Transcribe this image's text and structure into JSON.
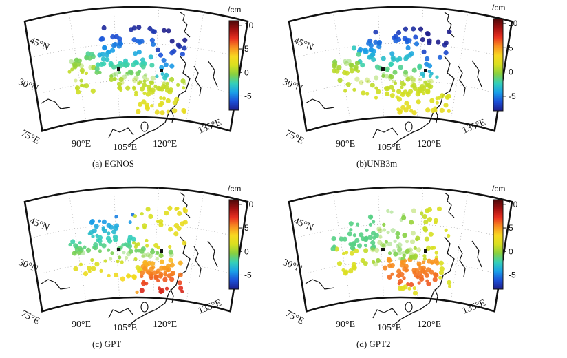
{
  "colorbar": {
    "unit": "/cm",
    "ticks": [
      10,
      5,
      0,
      -5
    ],
    "range": [
      -8,
      11
    ],
    "colors": [
      "#1e1e8c",
      "#1c50d8",
      "#1aa0e8",
      "#34d0b8",
      "#88d040",
      "#d8e020",
      "#f8d820",
      "#f89020",
      "#e83020",
      "#a01010",
      "#4a0808"
    ]
  },
  "panels": [
    {
      "caption": "(a) EGNOS",
      "lat_labels": [
        "45°N",
        "30°N"
      ],
      "lon_labels": [
        "75°E",
        "90°E",
        "105°E",
        "120°E",
        "135°E"
      ]
    },
    {
      "caption": "(b)UNB3m",
      "lat_labels": [
        "45°N",
        "30°N"
      ],
      "lon_labels": [
        "75°E",
        "90°E",
        "105°E",
        "120°E",
        "135°E"
      ]
    },
    {
      "caption": "(c) GPT",
      "lat_labels": [
        "45°N",
        "30°N"
      ],
      "lon_labels": [
        "75°E",
        "90°E",
        "105°E",
        "120°E",
        "135°E"
      ]
    },
    {
      "caption": "(d) GPT2",
      "lat_labels": [
        "45°N",
        "30°N"
      ],
      "lon_labels": [
        "75°E",
        "90°E",
        "105°E",
        "120°E",
        "135°E"
      ]
    }
  ]
}
